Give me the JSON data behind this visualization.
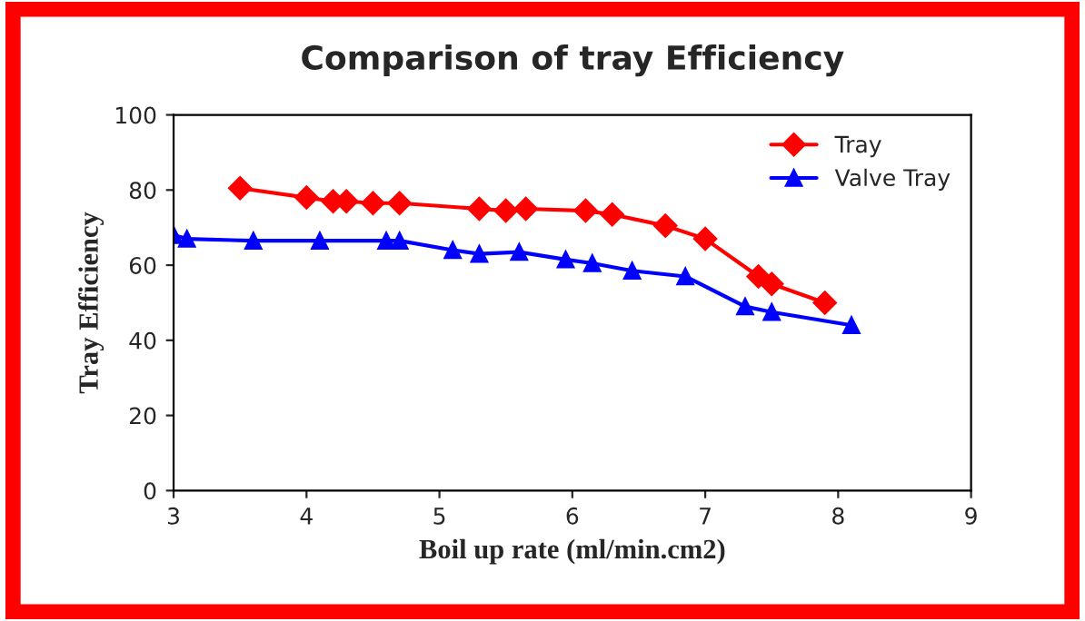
{
  "chart_data": {
    "type": "line",
    "title": "Comparison of tray Efficiency",
    "xlabel": "Boil up rate (ml/min.cm2)",
    "ylabel": "Tray Efficiency",
    "series": [
      {
        "name": "Tray",
        "color": "#ff0000",
        "marker": "diamond",
        "x": [
          3.5,
          4.0,
          4.2,
          4.3,
          4.5,
          4.7,
          5.3,
          5.5,
          5.65,
          6.1,
          6.3,
          6.7,
          7.0,
          7.4,
          7.5,
          7.9
        ],
        "values": [
          80.5,
          78,
          77,
          77,
          76.5,
          76.5,
          75,
          74.5,
          75,
          74.5,
          73.5,
          70.5,
          67,
          57,
          55,
          50
        ]
      },
      {
        "name": "Valve Tray",
        "color": "#0000ff",
        "marker": "triangle",
        "x": [
          3.0,
          3.1,
          3.6,
          4.1,
          4.6,
          4.7,
          5.1,
          5.3,
          5.6,
          5.95,
          6.15,
          6.45,
          6.85,
          7.3,
          7.5,
          8.1
        ],
        "values": [
          68,
          67,
          66.5,
          66.5,
          66.5,
          66.5,
          64,
          63,
          63.5,
          61.5,
          60.5,
          58.5,
          57,
          49,
          47.5,
          44
        ]
      }
    ],
    "xlim": [
      3,
      9
    ],
    "xticks": [
      3,
      4,
      5,
      6,
      7,
      8,
      9
    ],
    "ylim": [
      0,
      100
    ],
    "yticks": [
      0,
      20,
      40,
      60,
      80,
      100
    ],
    "grid": false,
    "legend": "top right"
  }
}
